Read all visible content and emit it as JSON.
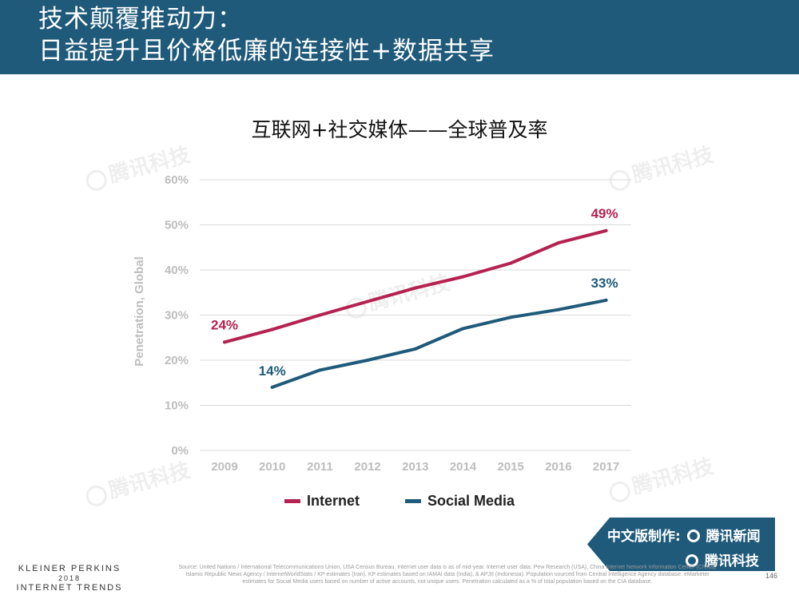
{
  "header": {
    "line1": "技术颠覆推动力：",
    "line2": "日益提升且价格低廉的连接性+数据共享"
  },
  "chart_data": {
    "type": "line",
    "title": "互联网+社交媒体——全球普及率",
    "ylabel": "Penetration, Global",
    "xlabel": "",
    "categories": [
      "2009",
      "2010",
      "2011",
      "2012",
      "2013",
      "2014",
      "2015",
      "2016",
      "2017"
    ],
    "ylim": [
      0,
      60
    ],
    "yticks": [
      0,
      10,
      20,
      30,
      40,
      50,
      60
    ],
    "ytick_labels": [
      "0%",
      "10%",
      "20%",
      "30%",
      "40%",
      "50%",
      "60%"
    ],
    "grid": true,
    "series": [
      {
        "name": "Internet",
        "color": "#b52150",
        "values": [
          24,
          26.8,
          30,
          33,
          36,
          38.5,
          41.5,
          46,
          48.7
        ],
        "labels": [
          {
            "index": 0,
            "text": "24%"
          },
          {
            "index": 8,
            "text": "49%"
          }
        ]
      },
      {
        "name": "Social Media",
        "color": "#1f5a7a",
        "values": [
          null,
          14,
          17.8,
          20,
          22.5,
          27,
          29.5,
          31.2,
          33.3
        ],
        "labels": [
          {
            "index": 1,
            "text": "14%"
          },
          {
            "index": 8,
            "text": "33%"
          }
        ]
      }
    ]
  },
  "watermark": "腾讯科技",
  "badge": {
    "line1": "中文版制作:",
    "brand1": "腾讯新闻",
    "brand2": "腾讯科技"
  },
  "footer": {
    "brand_line1": "KLEINER PERKINS",
    "brand_line2": "2018",
    "brand_line3": "INTERNET TRENDS",
    "source": "Source: United Nations / International Telecommunications Union, USA Census Bureau. Internet user data is as of mid-year. Internet user data: Pew Research (USA), China Internet Network Information Center (China), Islamic Republic News Agency / InternetWorldStats / KP estimates (Iran), KP estimates based on IAMAI data (India), & APJII (Indonesia). Population sourced from Central Intelligence Agency database. eMarketer estimates for Social Media users based on number of active accounts, not unique users. Penetration calculated as a % of total population based on the CIA database.",
    "page": "146"
  }
}
